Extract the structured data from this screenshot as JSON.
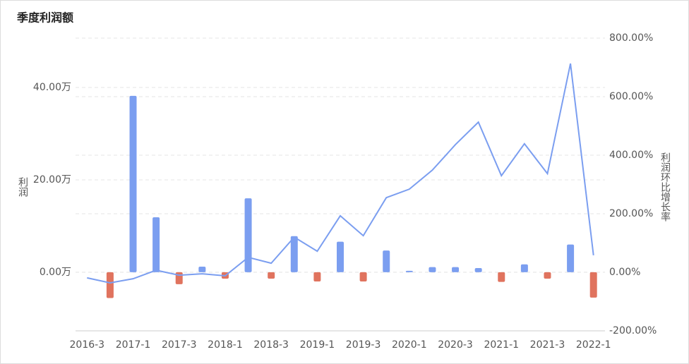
{
  "chart_data": {
    "type": "bar-line",
    "title": "季度利润额",
    "y_label": "利润",
    "y2_label": "利润环比增长率",
    "categories": [
      "2016-3",
      null,
      "2017-1",
      null,
      "2017-3",
      null,
      "2018-1",
      null,
      "2018-3",
      null,
      "2019-1",
      null,
      "2019-3",
      null,
      "2020-1",
      null,
      "2020-3",
      null,
      "2021-1",
      null,
      "2021-3",
      null,
      "2022-1"
    ],
    "series": [
      {
        "name": "利润",
        "type": "bar",
        "positive_color": "#7b9ef0",
        "negative_color": "#e0735e",
        "values": [
          null,
          -5.6,
          38.2,
          11.9,
          -2.6,
          1.2,
          -1.4,
          16.0,
          -1.4,
          7.8,
          -2.0,
          6.6,
          -2.0,
          4.7,
          0.3,
          1.1,
          1.1,
          0.9,
          -2.1,
          1.7,
          -1.4,
          6.0,
          -5.5
        ]
      },
      {
        "name": "利润环比增长率",
        "type": "line",
        "axis": "y2",
        "color": "#7b9ef0",
        "values": [
          -19,
          -36,
          -22,
          7,
          -10,
          -5,
          -12,
          51,
          31,
          120,
          72,
          193,
          125,
          255,
          284,
          349,
          436,
          513,
          330,
          439,
          337,
          713,
          58
        ]
      }
    ],
    "ylim": [
      -12.7,
      50.7
    ],
    "yticks": [
      {
        "value": 0,
        "label": "0.00万"
      },
      {
        "value": 20,
        "label": "20.00万"
      },
      {
        "value": 40,
        "label": "40.00万"
      }
    ],
    "y2lim": [
      -200,
      800
    ],
    "y2ticks": [
      {
        "value": -200,
        "label": "-200.00%"
      },
      {
        "value": 0,
        "label": "0.00%"
      },
      {
        "value": 200,
        "label": "200.00%"
      },
      {
        "value": 400,
        "label": "400.00%"
      },
      {
        "value": 600,
        "label": "600.00%"
      },
      {
        "value": 800,
        "label": "800.00%"
      }
    ],
    "grid": true
  }
}
